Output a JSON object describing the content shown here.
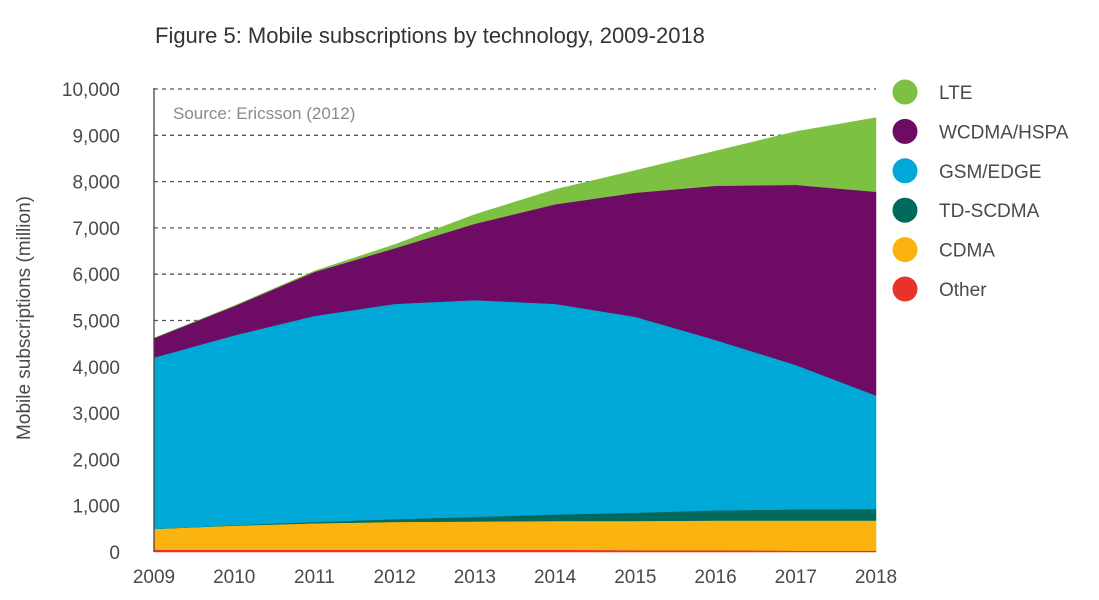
{
  "chart_data": {
    "type": "area",
    "stacked": true,
    "title": "Figure 5: Mobile subscriptions by technology, 2009-2018",
    "source_note": "Source: Ericsson (2012)",
    "xlabel": "",
    "ylabel": "Mobile subscriptions (million)",
    "x": [
      2009,
      2010,
      2011,
      2012,
      2013,
      2014,
      2015,
      2016,
      2017,
      2018
    ],
    "x_tick_labels": [
      "2009",
      "2010",
      "2011",
      "2012",
      "2013",
      "2014",
      "2015",
      "2016",
      "2017",
      "2018"
    ],
    "ylim": [
      0,
      10000
    ],
    "y_ticks": [
      0,
      1000,
      2000,
      3000,
      4000,
      5000,
      6000,
      7000,
      8000,
      9000,
      10000
    ],
    "y_tick_labels": [
      "0",
      "1,000",
      "2,000",
      "3,000",
      "4,000",
      "5,000",
      "6,000",
      "7,000",
      "8,000",
      "9,000",
      "10,000"
    ],
    "grid": "horizontal dashed",
    "legend_position": "right",
    "series": [
      {
        "name": "Other",
        "color": "#e8332a",
        "values": [
          50,
          50,
          50,
          50,
          50,
          50,
          40,
          40,
          30,
          30
        ]
      },
      {
        "name": "CDMA",
        "color": "#fbb40f",
        "values": [
          450,
          520,
          570,
          600,
          610,
          620,
          630,
          640,
          650,
          650
        ]
      },
      {
        "name": "TD-SCDMA",
        "color": "#00695e",
        "values": [
          0,
          10,
          30,
          60,
          100,
          140,
          180,
          220,
          240,
          250
        ]
      },
      {
        "name": "GSM/EDGE",
        "color": "#00a8d8",
        "values": [
          3700,
          4100,
          4450,
          4650,
          4680,
          4550,
          4230,
          3680,
          3120,
          2450
        ]
      },
      {
        "name": "WCDMA/HSPA",
        "color": "#6e0b65",
        "values": [
          420,
          630,
          950,
          1200,
          1650,
          2150,
          2680,
          3330,
          3890,
          4400
        ]
      },
      {
        "name": "LTE",
        "color": "#7cc142",
        "values": [
          0,
          10,
          20,
          80,
          200,
          320,
          480,
          750,
          1150,
          1600
        ]
      }
    ],
    "legend": [
      {
        "name": "LTE",
        "color": "#7cc142"
      },
      {
        "name": "WCDMA/HSPA",
        "color": "#6e0b65"
      },
      {
        "name": "GSM/EDGE",
        "color": "#00a8d8"
      },
      {
        "name": "TD-SCDMA",
        "color": "#00695e"
      },
      {
        "name": "CDMA",
        "color": "#fbb40f"
      },
      {
        "name": "Other",
        "color": "#e8332a"
      }
    ]
  }
}
